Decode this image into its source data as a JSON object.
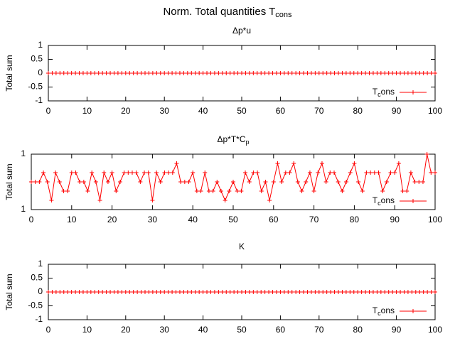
{
  "title": "Norm. Total quantities T",
  "title_sub": "cons",
  "chart_data": [
    {
      "type": "line",
      "title": "Δp*u",
      "ylabel": "Total sum",
      "x": [
        0,
        1,
        2,
        3,
        4,
        5,
        6,
        7,
        8,
        9,
        10,
        11,
        12,
        13,
        14,
        15,
        16,
        17,
        18,
        19,
        20,
        21,
        22,
        23,
        24,
        25,
        26,
        27,
        28,
        29,
        30,
        31,
        32,
        33,
        34,
        35,
        36,
        37,
        38,
        39,
        40,
        41,
        42,
        43,
        44,
        45,
        46,
        47,
        48,
        49,
        50,
        51,
        52,
        53,
        54,
        55,
        56,
        57,
        58,
        59,
        60,
        61,
        62,
        63,
        64,
        65,
        66,
        67,
        68,
        69,
        70,
        71,
        72,
        73,
        74,
        75,
        76,
        77,
        78,
        79,
        80,
        81,
        82,
        83,
        84,
        85,
        86,
        87,
        88,
        89,
        90,
        91,
        92,
        93,
        94,
        95,
        96,
        97,
        98,
        99,
        100
      ],
      "series": [
        {
          "name": "T",
          "name_sub": "c",
          "name_rest": "ons",
          "color": "#ff0000",
          "values": [
            0,
            0,
            0,
            0,
            0,
            0,
            0,
            0,
            0,
            0,
            0,
            0,
            0,
            0,
            0,
            0,
            0,
            0,
            0,
            0,
            0,
            0,
            0,
            0,
            0,
            0,
            0,
            0,
            0,
            0,
            0,
            0,
            0,
            0,
            0,
            0,
            0,
            0,
            0,
            0,
            0,
            0,
            0,
            0,
            0,
            0,
            0,
            0,
            0,
            0,
            0,
            0,
            0,
            0,
            0,
            0,
            0,
            0,
            0,
            0,
            0,
            0,
            0,
            0,
            0,
            0,
            0,
            0,
            0,
            0,
            0,
            0,
            0,
            0,
            0,
            0,
            0,
            0,
            0,
            0,
            0,
            0,
            0,
            0,
            0,
            0,
            0,
            0,
            0,
            0,
            0,
            0,
            0,
            0,
            0,
            0,
            0,
            0,
            0,
            0,
            0
          ]
        }
      ],
      "xlim": [
        0,
        100
      ],
      "xticks": [
        0,
        10,
        20,
        30,
        40,
        50,
        60,
        70,
        80,
        90,
        100
      ],
      "ylim": [
        -1,
        1
      ],
      "yticks": [
        -1,
        -0.5,
        0,
        0.5,
        1
      ],
      "legend": "bottom right",
      "grid": false
    },
    {
      "type": "line",
      "title": "Δp*T*C",
      "title_sub": "p",
      "ylabel": "Total sum",
      "x": [
        0,
        1,
        2,
        3,
        4,
        5,
        6,
        7,
        8,
        9,
        10,
        11,
        12,
        13,
        14,
        15,
        16,
        17,
        18,
        19,
        20,
        21,
        22,
        23,
        24,
        25,
        26,
        27,
        28,
        29,
        30,
        31,
        32,
        33,
        34,
        35,
        36,
        37,
        38,
        39,
        40,
        41,
        42,
        43,
        44,
        45,
        46,
        47,
        48,
        49,
        50,
        51,
        52,
        53,
        54,
        55,
        56,
        57,
        58,
        59,
        60,
        61,
        62,
        63,
        64,
        65,
        66,
        67,
        68,
        69,
        70,
        71,
        72,
        73,
        74,
        75,
        76,
        77,
        78,
        79,
        80,
        81,
        82,
        83,
        84,
        85,
        86,
        87,
        88,
        89,
        90,
        91,
        92,
        93,
        94,
        95,
        96,
        97,
        98,
        99,
        100
      ],
      "series": [
        {
          "name": "T",
          "name_sub": "c",
          "name_rest": "ons",
          "color": "#ff0000",
          "values": [
            0.9999999999999997,
            0.9999999999999997,
            0.9999999999999997,
            0.9999999999999998,
            0.9999999999999997,
            0.9999999999999994,
            0.9999999999999998,
            0.9999999999999997,
            0.9999999999999996,
            0.9999999999999996,
            0.9999999999999998,
            0.9999999999999998,
            0.9999999999999997,
            0.9999999999999997,
            0.9999999999999996,
            0.9999999999999998,
            0.9999999999999997,
            0.9999999999999994,
            0.9999999999999998,
            0.9999999999999997,
            0.9999999999999998,
            0.9999999999999996,
            0.9999999999999997,
            0.9999999999999998,
            0.9999999999999998,
            0.9999999999999998,
            0.9999999999999998,
            0.9999999999999997,
            0.9999999999999998,
            0.9999999999999998,
            0.9999999999999994,
            0.9999999999999998,
            0.9999999999999997,
            0.9999999999999998,
            0.9999999999999998,
            0.9999999999999998,
            0.9999999999999999,
            0.9999999999999997,
            0.9999999999999997,
            0.9999999999999997,
            0.9999999999999998,
            0.9999999999999996,
            0.9999999999999996,
            0.9999999999999998,
            0.9999999999999996,
            0.9999999999999996,
            0.9999999999999997,
            0.9999999999999996,
            0.9999999999999994,
            0.9999999999999996,
            0.9999999999999997,
            0.9999999999999996,
            0.9999999999999996,
            0.9999999999999998,
            0.9999999999999997,
            0.9999999999999998,
            0.9999999999999998,
            0.9999999999999996,
            0.9999999999999997,
            0.9999999999999994,
            0.9999999999999997,
            0.9999999999999999,
            0.9999999999999997,
            0.9999999999999998,
            0.9999999999999998,
            0.9999999999999999,
            0.9999999999999997,
            0.9999999999999996,
            0.9999999999999997,
            0.9999999999999998,
            0.9999999999999996,
            0.9999999999999998,
            0.9999999999999999,
            0.9999999999999997,
            0.9999999999999998,
            0.9999999999999998,
            0.9999999999999997,
            0.9999999999999996,
            0.9999999999999997,
            0.9999999999999998,
            0.9999999999999999,
            0.9999999999999997,
            0.9999999999999996,
            0.9999999999999998,
            0.9999999999999998,
            0.9999999999999998,
            0.9999999999999998,
            0.9999999999999996,
            0.9999999999999997,
            0.9999999999999998,
            0.9999999999999998,
            0.9999999999999999,
            0.9999999999999996,
            0.9999999999999996,
            0.9999999999999998,
            0.9999999999999997,
            0.9999999999999997,
            0.9999999999999997,
            1,
            0.9999999999999998,
            0.9999999999999998
          ]
        }
      ],
      "xlim": [
        0,
        100
      ],
      "xticks": [
        0,
        10,
        20,
        30,
        40,
        50,
        60,
        70,
        80,
        90,
        100
      ],
      "ylim": [
        0.9999999999999993,
        1
      ],
      "yticks": [
        {
          "value": 0.9999999999999993,
          "label": "1"
        },
        {
          "value": 1,
          "label": "1"
        }
      ],
      "legend": "bottom right",
      "grid": false
    },
    {
      "type": "line",
      "title": "K",
      "ylabel": "Total sum",
      "x": [
        0,
        1,
        2,
        3,
        4,
        5,
        6,
        7,
        8,
        9,
        10,
        11,
        12,
        13,
        14,
        15,
        16,
        17,
        18,
        19,
        20,
        21,
        22,
        23,
        24,
        25,
        26,
        27,
        28,
        29,
        30,
        31,
        32,
        33,
        34,
        35,
        36,
        37,
        38,
        39,
        40,
        41,
        42,
        43,
        44,
        45,
        46,
        47,
        48,
        49,
        50,
        51,
        52,
        53,
        54,
        55,
        56,
        57,
        58,
        59,
        60,
        61,
        62,
        63,
        64,
        65,
        66,
        67,
        68,
        69,
        70,
        71,
        72,
        73,
        74,
        75,
        76,
        77,
        78,
        79,
        80,
        81,
        82,
        83,
        84,
        85,
        86,
        87,
        88,
        89,
        90,
        91,
        92,
        93,
        94,
        95,
        96,
        97,
        98,
        99,
        100
      ],
      "series": [
        {
          "name": "T",
          "name_sub": "c",
          "name_rest": "ons",
          "color": "#ff0000",
          "values": [
            0,
            0,
            0,
            0,
            0,
            0,
            0,
            0,
            0,
            0,
            0,
            0,
            0,
            0,
            0,
            0,
            0,
            0,
            0,
            0,
            0,
            0,
            0,
            0,
            0,
            0,
            0,
            0,
            0,
            0,
            0,
            0,
            0,
            0,
            0,
            0,
            0,
            0,
            0,
            0,
            0,
            0,
            0,
            0,
            0,
            0,
            0,
            0,
            0,
            0,
            0,
            0,
            0,
            0,
            0,
            0,
            0,
            0,
            0,
            0,
            0,
            0,
            0,
            0,
            0,
            0,
            0,
            0,
            0,
            0,
            0,
            0,
            0,
            0,
            0,
            0,
            0,
            0,
            0,
            0,
            0,
            0,
            0,
            0,
            0,
            0,
            0,
            0,
            0,
            0,
            0,
            0,
            0,
            0,
            0,
            0,
            0,
            0,
            0,
            0,
            0
          ]
        }
      ],
      "xlim": [
        0,
        100
      ],
      "xticks": [
        0,
        10,
        20,
        30,
        40,
        50,
        60,
        70,
        80,
        90,
        100
      ],
      "ylim": [
        -1,
        1
      ],
      "yticks": [
        -1,
        -0.5,
        0,
        0.5,
        1
      ],
      "legend": "bottom right",
      "grid": false
    }
  ]
}
